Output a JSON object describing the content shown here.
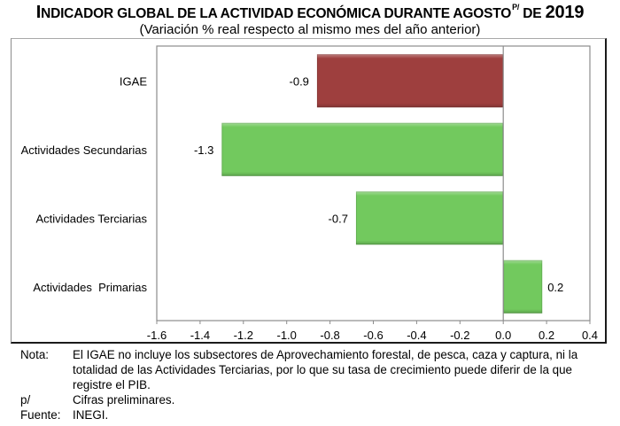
{
  "title": {
    "initial": "I",
    "main": "NDICADOR GLOBAL DE LA ACTIVIDAD ECONÓMICA DURANTE AGOSTO",
    "superscript": "P/",
    "suffix": " DE ",
    "year": "2019"
  },
  "subtitle": "(Variación % real respecto al mismo mes del año anterior)",
  "colors": {
    "igae_bar": "#9E3F3E",
    "sector_bar": "#72C95E",
    "zero_line": "#8c8c8c",
    "plot_border": "#8c8c8c"
  },
  "chart_data": {
    "type": "bar",
    "orientation": "horizontal",
    "title": "Indicador Global de la Actividad Económica durante agosto p/ de 2019",
    "subtitle": "(Variación % real respecto al mismo mes del año anterior)",
    "xlabel": "",
    "ylabel": "",
    "categories": [
      "IGAE",
      "Actividades Secundarias",
      "Actividades Terciarias",
      "Actividades  Primarias"
    ],
    "values": [
      -0.86,
      -1.3,
      -0.68,
      0.18
    ],
    "data_labels": [
      "-0.9",
      "-1.3",
      "-0.7",
      "0.2"
    ],
    "bar_color_keys": [
      "igae_bar",
      "sector_bar",
      "sector_bar",
      "sector_bar"
    ],
    "xlim": [
      -1.6,
      0.4
    ],
    "xticks": [
      -1.6,
      -1.4,
      -1.2,
      -1.0,
      -0.8,
      -0.6,
      -0.4,
      -0.2,
      0.0,
      0.2,
      0.4
    ],
    "xtick_labels": [
      "-1.6",
      "-1.4",
      "-1.2",
      "-1.0",
      "-0.8",
      "-0.6",
      "-0.4",
      "-0.2",
      "0.0",
      "0.2",
      "0.4"
    ],
    "grid": false,
    "legend": "none"
  },
  "notes": [
    {
      "label": "Nota:",
      "text": "El IGAE no incluye los subsectores de Aprovechamiento forestal, de pesca, caza y captura, ni la totalidad de las Actividades Terciarias, por lo que su tasa de crecimiento puede diferir de la que registre el PIB."
    },
    {
      "label": "p/",
      "text": "Cifras preliminares."
    },
    {
      "label": "Fuente:",
      "text": "INEGI."
    }
  ]
}
